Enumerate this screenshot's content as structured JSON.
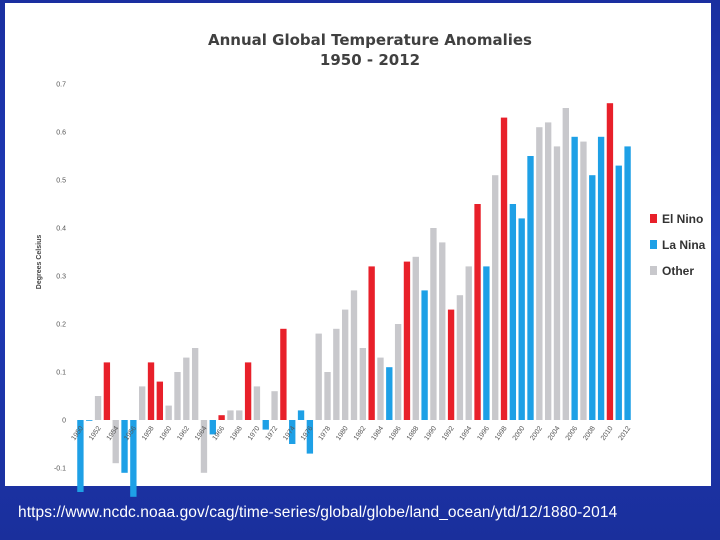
{
  "slide": {
    "source_url": "https://www.ncdc.noaa.gov/cag/time-series/global/globe/land_ocean/ytd/12/1880-2014"
  },
  "colors": {
    "el_nino": "#e8202a",
    "la_nina": "#1ea0e6",
    "other": "#c8c8cc",
    "slide_background": "#1f3bb8"
  },
  "chart_data": {
    "type": "bar",
    "title": "Annual Global Temperature Anomalies",
    "subtitle": "1950 - 2012",
    "xlabel": "",
    "ylabel": "Degrees Celsius",
    "ylim": [
      -0.15,
      0.7
    ],
    "yticks": [
      "0.7",
      "0.6",
      "0.5",
      "0.4",
      "0.3",
      "0.2",
      "0.1",
      "0",
      "-0.1"
    ],
    "ytick_values": [
      0.7,
      0.6,
      0.5,
      0.4,
      0.3,
      0.2,
      0.1,
      0,
      -0.1
    ],
    "grid": false,
    "legend_position": "right",
    "legend": [
      {
        "key": "el_nino",
        "label": "El Nino"
      },
      {
        "key": "la_nina",
        "label": "La Nina"
      },
      {
        "key": "other",
        "label": "Other"
      }
    ],
    "xtick_labels": [
      "1950",
      "1952",
      "1954",
      "1956",
      "1958",
      "1960",
      "1962",
      "1964",
      "1966",
      "1968",
      "1970",
      "1972",
      "1974",
      "1976",
      "1978",
      "1980",
      "1982",
      "1984",
      "1986",
      "1988",
      "1990",
      "1992",
      "1994",
      "1996",
      "1998",
      "2000",
      "2002",
      "2004",
      "2006",
      "2008",
      "2010",
      "2012"
    ],
    "years": [
      1950,
      1951,
      1952,
      1953,
      1954,
      1955,
      1956,
      1957,
      1958,
      1959,
      1960,
      1961,
      1962,
      1963,
      1964,
      1965,
      1966,
      1967,
      1968,
      1969,
      1970,
      1971,
      1972,
      1973,
      1974,
      1975,
      1976,
      1977,
      1978,
      1979,
      1980,
      1981,
      1982,
      1983,
      1984,
      1985,
      1986,
      1987,
      1988,
      1989,
      1990,
      1991,
      1992,
      1993,
      1994,
      1995,
      1996,
      1997,
      1998,
      1999,
      2000,
      2001,
      2002,
      2003,
      2004,
      2005,
      2006,
      2007,
      2008,
      2009,
      2010,
      2011,
      2012
    ],
    "values": [
      -0.15,
      0,
      0.05,
      0.12,
      -0.09,
      -0.11,
      -0.16,
      0.07,
      0.12,
      0.08,
      0.03,
      0.1,
      0.13,
      0.15,
      -0.11,
      -0.03,
      0.01,
      0.02,
      0.02,
      0.12,
      0.07,
      -0.02,
      0.06,
      0.19,
      -0.05,
      0.02,
      -0.07,
      0.18,
      0.1,
      0.19,
      0.23,
      0.27,
      0.15,
      0.32,
      0.13,
      0.11,
      0.2,
      0.33,
      0.34,
      0.27,
      0.4,
      0.37,
      0.23,
      0.26,
      0.32,
      0.45,
      0.32,
      0.51,
      0.63,
      0.45,
      0.42,
      0.55,
      0.61,
      0.62,
      0.57,
      0.65,
      0.59,
      0.58,
      0.51,
      0.59,
      0.66,
      0.53,
      0.57
    ],
    "categories": [
      "la_nina",
      "la_nina",
      "other",
      "el_nino",
      "other",
      "la_nina",
      "la_nina",
      "other",
      "el_nino",
      "el_nino",
      "other",
      "other",
      "other",
      "other",
      "other",
      "la_nina",
      "el_nino",
      "other",
      "other",
      "el_nino",
      "other",
      "la_nina",
      "other",
      "el_nino",
      "la_nina",
      "la_nina",
      "la_nina",
      "other",
      "other",
      "other",
      "other",
      "other",
      "other",
      "el_nino",
      "other",
      "la_nina",
      "other",
      "el_nino",
      "other",
      "la_nina",
      "other",
      "other",
      "el_nino",
      "other",
      "other",
      "el_nino",
      "la_nina",
      "other",
      "el_nino",
      "la_nina",
      "la_nina",
      "la_nina",
      "other",
      "other",
      "other",
      "other",
      "la_nina",
      "other",
      "la_nina",
      "la_nina",
      "el_nino",
      "la_nina",
      "la_nina"
    ]
  }
}
